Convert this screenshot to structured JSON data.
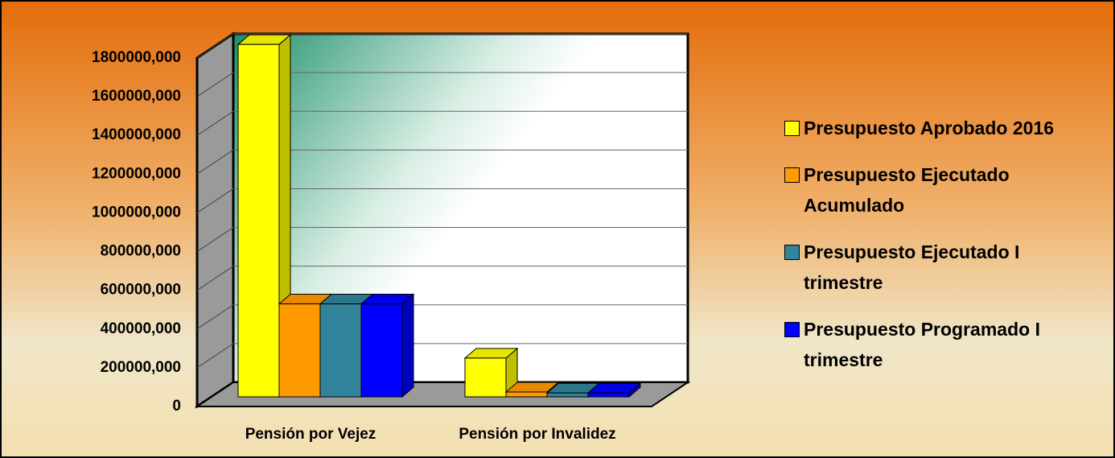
{
  "chart_data": {
    "type": "bar3d",
    "categories": [
      "Pensión por Vejez",
      "Pensión por Invalidez"
    ],
    "series": [
      {
        "name": "Presupuesto Aprobado 2016",
        "color": "#ffff00",
        "values": [
          1820000,
          200000
        ]
      },
      {
        "name": "Presupuesto Ejecutado Acumulado",
        "color": "#ff9900",
        "values": [
          480000,
          25000
        ]
      },
      {
        "name": "Presupuesto Ejecutado I trimestre",
        "color": "#31849b",
        "values": [
          480000,
          20000
        ]
      },
      {
        "name": "Presupuesto Programado I trimestre",
        "color": "#0000ff",
        "values": [
          480000,
          20000
        ]
      }
    ],
    "ylim": [
      0,
      1800000
    ],
    "yticks": [
      0,
      {
        "value": 200000,
        "label": "200000,000"
      },
      {
        "value": 400000,
        "label": "400000,000"
      },
      {
        "value": 600000,
        "label": "600000,000"
      },
      {
        "value": 800000,
        "label": "800000,000"
      },
      {
        "value": 1000000,
        "label": "1000000,000"
      },
      {
        "value": 1200000,
        "label": "1200000,000"
      },
      {
        "value": 1400000,
        "label": "1400000,000"
      },
      {
        "value": 1600000,
        "label": "1600000,000"
      },
      {
        "value": 1800000,
        "label": "1800000,000"
      }
    ],
    "grid": true,
    "legend": "right"
  }
}
